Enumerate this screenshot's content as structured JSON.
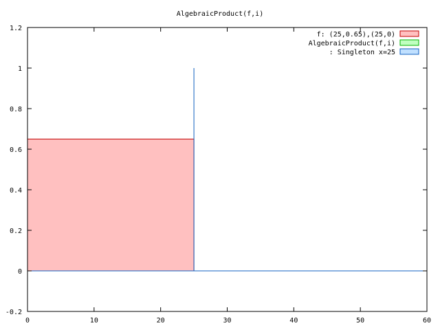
{
  "chart_data": {
    "type": "area",
    "title": "AlgebraicProduct(f,i)",
    "xlabel": "",
    "ylabel": "",
    "xlim": [
      0,
      60
    ],
    "ylim": [
      -0.2,
      1.2
    ],
    "x_ticks": [
      0,
      10,
      20,
      30,
      40,
      50,
      60
    ],
    "y_ticks": [
      -0.2,
      0,
      0.2,
      0.4,
      0.6,
      0.8,
      1,
      1.2
    ],
    "grid": false,
    "legend_position": "top-right",
    "series": [
      {
        "name": "f: (25,0.65),(25,0)",
        "style": "filled-area",
        "color": "#c00000",
        "fill": "#ffc0c0",
        "points": [
          [
            0,
            0.65
          ],
          [
            25,
            0.65
          ],
          [
            25,
            0
          ]
        ]
      },
      {
        "name": "AlgebraicProduct(f,i)",
        "style": "filled-area",
        "color": "#00b000",
        "fill": "#c0ffc0",
        "points": [
          [
            0,
            0
          ],
          [
            25,
            0
          ],
          [
            60,
            0
          ]
        ]
      },
      {
        "name": ": Singleton x=25",
        "style": "impulse",
        "color": "#1060c0",
        "fill": "#c0e0ff",
        "points": [
          [
            0,
            0
          ],
          [
            25,
            0
          ],
          [
            25,
            1
          ],
          [
            25,
            0
          ],
          [
            60,
            0
          ]
        ]
      }
    ]
  }
}
